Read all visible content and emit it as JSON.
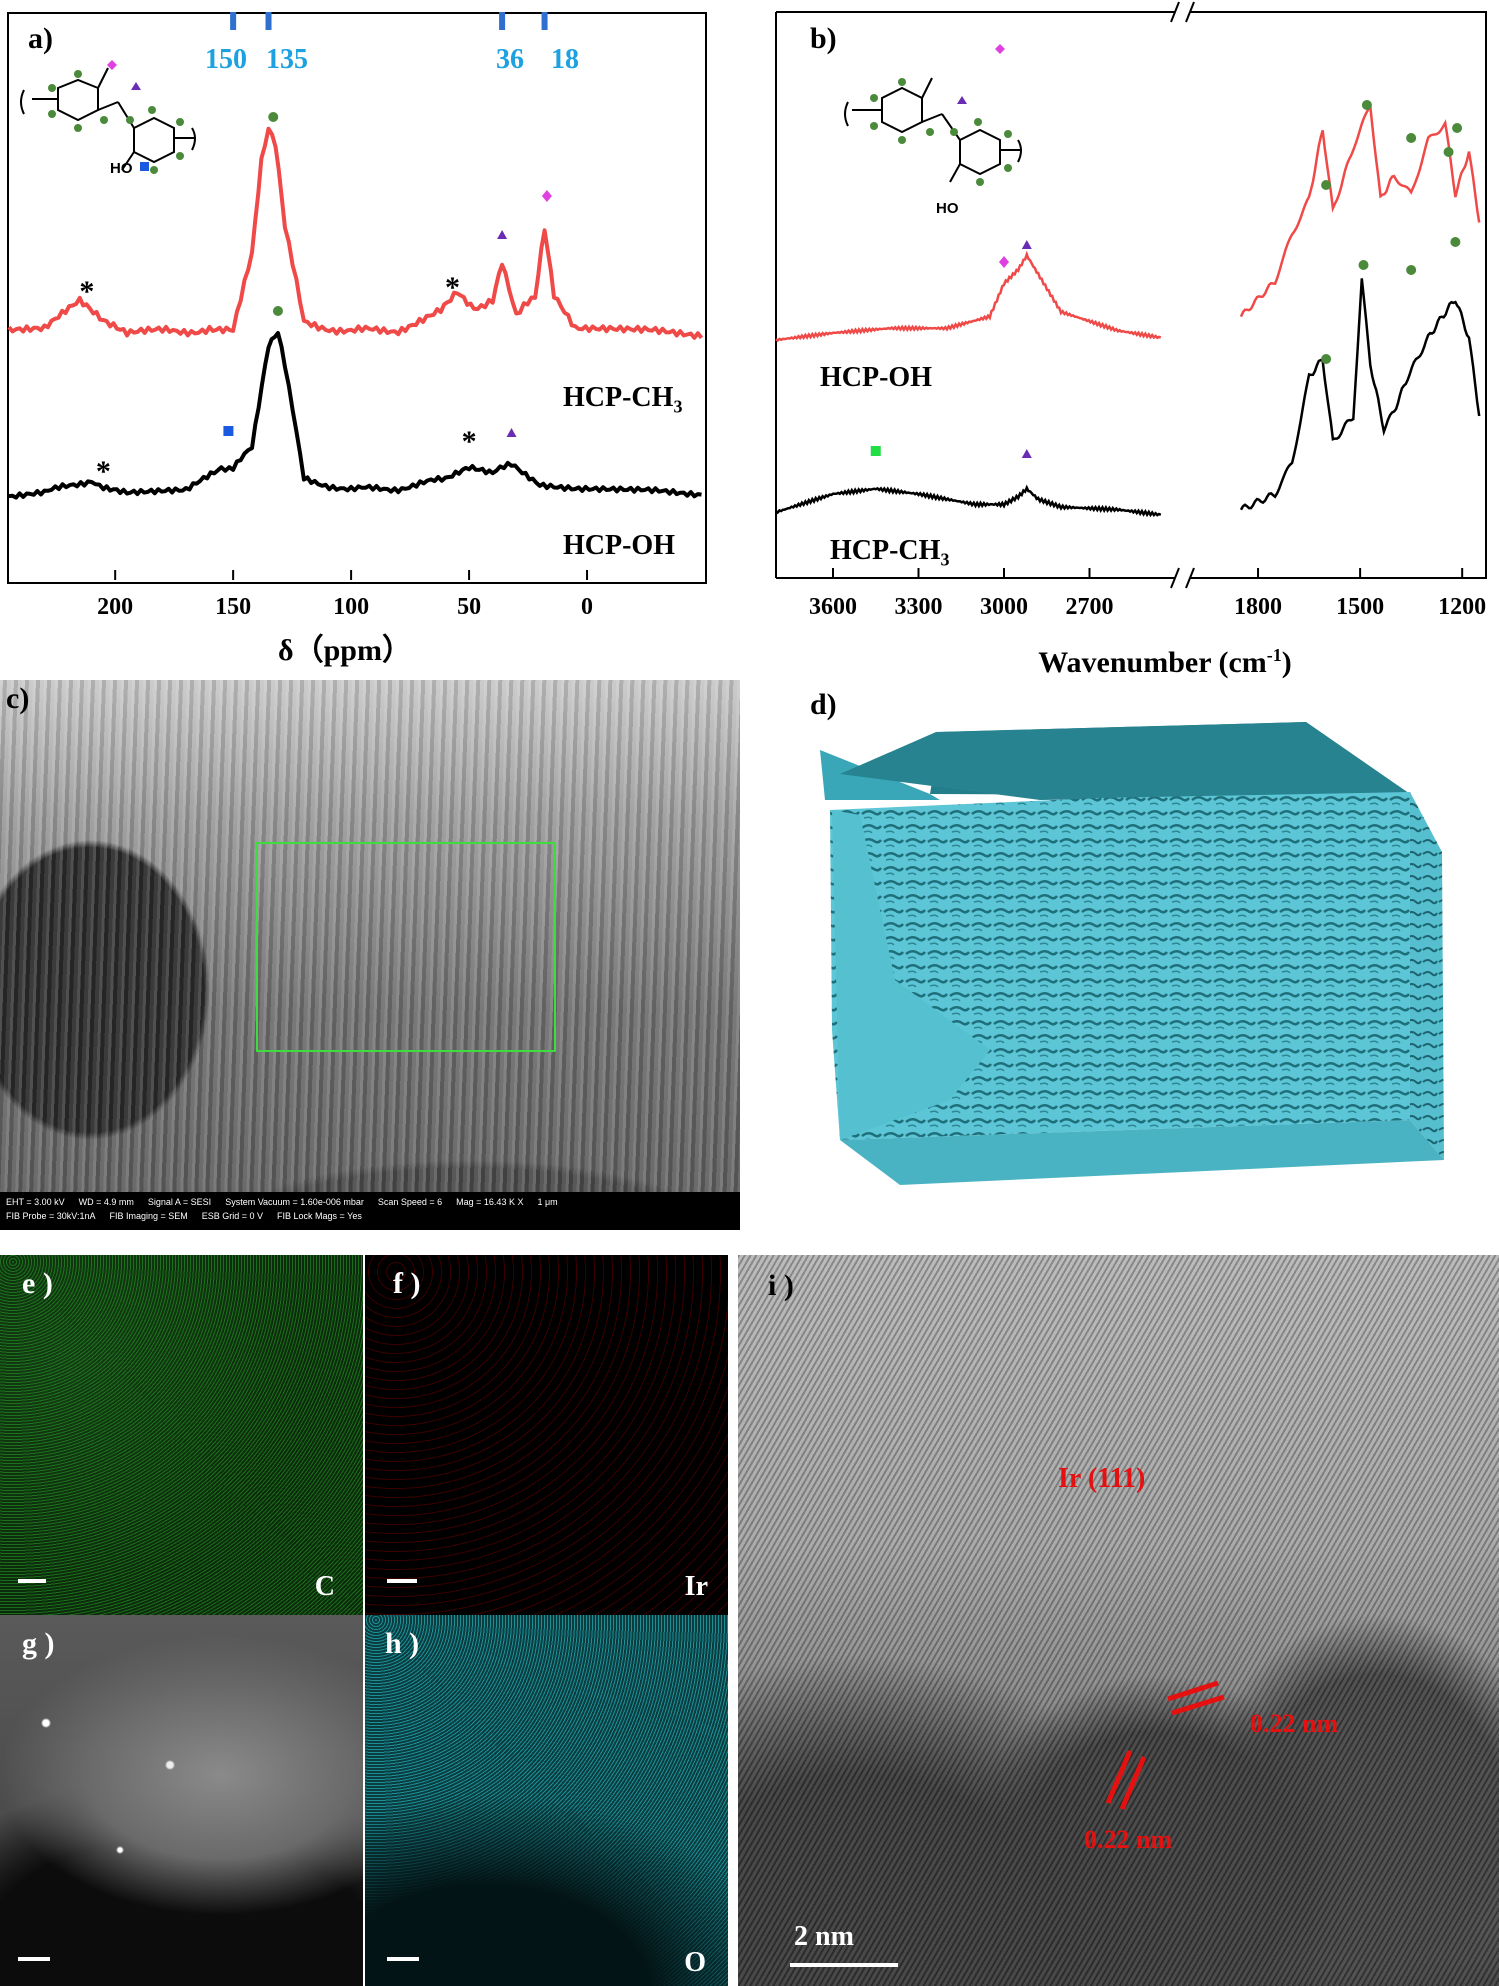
{
  "figure": {
    "panel_a": {
      "label": "a)",
      "x_title": "δ（ppm）",
      "ref_lines": [
        "150",
        "135",
        "36",
        "18"
      ],
      "series_top": "HCP-CH",
      "series_top_sub": "3",
      "series_bottom": "HCP-OH",
      "marker_star": "*",
      "oh_label": "HO"
    },
    "panel_b": {
      "label": "b)",
      "x_title": "Wavenumber (cm",
      "x_title_sup": "-1",
      "x_title_end": ")",
      "series_top": "HCP-OH",
      "series_bottom": "HCP-CH",
      "series_bottom_sub": "3",
      "oh_label": "HO"
    },
    "panel_c": {
      "label": "c)",
      "sem_info": [
        "EHT = 3.00 kV",
        "WD = 4.9 mm",
        "Signal A = SESI",
        "System Vacuum = 1.60e-006 mbar",
        "Scan Speed = 6",
        "Mag = 16.43 K X",
        "1 μm"
      ],
      "sem_info2": [
        "FIB Probe = 30kV:1nA",
        "FIB Imaging = SEM",
        "ESB Grid = 0 V",
        "FIB Lock Mags = Yes"
      ]
    },
    "panel_d": {
      "label": "d)"
    },
    "panel_e": {
      "label": "e )",
      "element": "C"
    },
    "panel_f": {
      "label": "f )",
      "element": "Ir"
    },
    "panel_g": {
      "label": "g )"
    },
    "panel_h": {
      "label": "h )",
      "element": "O"
    },
    "panel_i": {
      "label": "i )",
      "plane": "Ir (111)",
      "d1": "0.22 nm",
      "d2": "0.22 nm",
      "scale": "2 nm"
    }
  },
  "chart_data": [
    {
      "type": "line",
      "title": "",
      "xlabel": "δ（ppm）",
      "ylabel": "",
      "xlim": [
        245,
        -50
      ],
      "x_ticks": [
        200,
        150,
        100,
        50,
        0
      ],
      "reference_lines": [
        150,
        135,
        36,
        18
      ],
      "series": [
        {
          "name": "HCP-CH3",
          "x": [
            245,
            230,
            215,
            205,
            195,
            180,
            160,
            150,
            142,
            138,
            135,
            132,
            128,
            120,
            100,
            80,
            62,
            55,
            48,
            40,
            36,
            30,
            22,
            18,
            14,
            5,
            -20,
            -50
          ],
          "y": [
            0.06,
            0.05,
            0.18,
            0.08,
            0.03,
            0.04,
            0.05,
            0.06,
            0.4,
            0.85,
            1.0,
            0.92,
            0.55,
            0.08,
            0.04,
            0.05,
            0.14,
            0.24,
            0.16,
            0.18,
            0.38,
            0.12,
            0.2,
            0.52,
            0.22,
            0.05,
            0.04,
            0.03
          ]
        },
        {
          "name": "HCP-OH",
          "x": [
            245,
            230,
            210,
            205,
            195,
            170,
            155,
            150,
            142,
            135,
            131,
            128,
            120,
            100,
            80,
            60,
            50,
            40,
            32,
            20,
            5,
            -20,
            -50
          ],
          "y": [
            0.03,
            0.04,
            0.12,
            0.06,
            0.04,
            0.05,
            0.18,
            0.2,
            0.3,
            0.9,
            1.0,
            0.8,
            0.12,
            0.06,
            0.07,
            0.12,
            0.18,
            0.15,
            0.22,
            0.1,
            0.06,
            0.05,
            0.04
          ]
        }
      ]
    },
    {
      "type": "line",
      "title": "",
      "xlabel": "Wavenumber (cm-1)",
      "ylabel": "",
      "xlim": [
        3800,
        1130
      ],
      "axis_break": [
        2400,
        2000
      ],
      "x_ticks": [
        3600,
        3300,
        3000,
        2700,
        1800,
        1500,
        1200
      ],
      "series": [
        {
          "name": "HCP-OH",
          "x": [
            3800,
            3600,
            3400,
            3200,
            3050,
            3000,
            2950,
            2920,
            2880,
            2800,
            2600,
            2450,
            1850,
            1750,
            1700,
            1650,
            1610,
            1580,
            1520,
            1470,
            1440,
            1400,
            1350,
            1300,
            1250,
            1220,
            1180,
            1150
          ],
          "y": [
            0.0,
            0.03,
            0.05,
            0.05,
            0.1,
            0.24,
            0.3,
            0.36,
            0.28,
            0.12,
            0.04,
            0.01,
            0.1,
            0.25,
            0.45,
            0.6,
            0.9,
            0.55,
            0.82,
            1.0,
            0.6,
            0.7,
            0.62,
            0.85,
            0.92,
            0.62,
            0.8,
            0.5
          ]
        },
        {
          "name": "HCP-CH3",
          "x": [
            3800,
            3600,
            3450,
            3300,
            3100,
            3000,
            2950,
            2920,
            2880,
            2800,
            2600,
            2450,
            1850,
            1750,
            1700,
            1650,
            1610,
            1580,
            1520,
            1495,
            1470,
            1430,
            1400,
            1360,
            1300,
            1260,
            1220,
            1180,
            1150
          ],
          "y": [
            0.03,
            0.1,
            0.12,
            0.1,
            0.06,
            0.06,
            0.09,
            0.12,
            0.08,
            0.05,
            0.04,
            0.02,
            0.04,
            0.1,
            0.22,
            0.55,
            0.62,
            0.3,
            0.4,
            0.92,
            0.6,
            0.35,
            0.42,
            0.55,
            0.7,
            0.78,
            0.85,
            0.7,
            0.4
          ]
        }
      ]
    }
  ]
}
